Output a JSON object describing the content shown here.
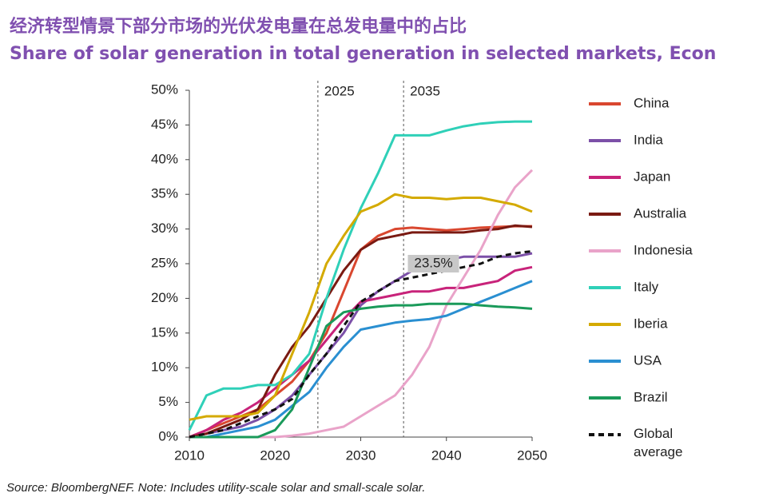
{
  "chart_data": {
    "type": "line",
    "title": "经济转型情景下部分市场的光伏发电量在总发电量中的占比",
    "subtitle": "Share of solar generation in total generation in selected markets, Econ",
    "source": "Source: BloombergNEF. Note: Includes utility-scale solar and small-scale solar.",
    "annotation": "23.5%",
    "vlines": [
      2025,
      2035
    ],
    "legend": "right",
    "x": [
      2010,
      2012,
      2014,
      2016,
      2018,
      2020,
      2022,
      2024,
      2026,
      2028,
      2030,
      2032,
      2034,
      2036,
      2038,
      2040,
      2042,
      2044,
      2046,
      2048,
      2050
    ],
    "xlim": [
      2010,
      2050
    ],
    "xticks": [
      2010,
      2020,
      2030,
      2040,
      2050
    ],
    "ylim": [
      0,
      50
    ],
    "yticks": [
      {
        "value": 0,
        "label": "0%"
      },
      {
        "value": 5,
        "label": "5%"
      },
      {
        "value": 10,
        "label": "10%"
      },
      {
        "value": 15,
        "label": "15%"
      },
      {
        "value": 20,
        "label": "20%"
      },
      {
        "value": 25,
        "label": "25%"
      },
      {
        "value": 30,
        "label": "30%"
      },
      {
        "value": 35,
        "label": "35%"
      },
      {
        "value": 40,
        "label": "40%"
      },
      {
        "value": 45,
        "label": "45%"
      },
      {
        "value": 50,
        "label": "50%"
      }
    ],
    "series": [
      {
        "name": "China",
        "color": "#d9472f",
        "values": [
          0,
          1,
          2,
          3,
          4,
          6,
          8,
          11,
          15,
          21,
          27,
          29,
          30,
          30.2,
          30,
          29.8,
          30,
          30.2,
          30.3,
          30.4,
          30.4
        ]
      },
      {
        "name": "India",
        "color": "#7c50a8",
        "values": [
          0,
          0.5,
          1,
          1.5,
          2.5,
          4,
          6,
          9,
          12,
          15,
          19,
          21,
          22.5,
          24,
          25,
          25.5,
          26,
          26,
          26,
          26,
          26.5
        ]
      },
      {
        "name": "Japan",
        "color": "#c8237a",
        "values": [
          0,
          1,
          2.5,
          3.5,
          5,
          7,
          9,
          11,
          14,
          17,
          19.5,
          20,
          20.5,
          21,
          21,
          21.5,
          21.5,
          22,
          22.5,
          24,
          24.5
        ]
      },
      {
        "name": "Australia",
        "color": "#7a1a12",
        "values": [
          0,
          0.5,
          1.5,
          2.5,
          4,
          9,
          13,
          16,
          20,
          24,
          27,
          28.5,
          29,
          29.5,
          29.5,
          29.5,
          29.5,
          29.8,
          30,
          30.5,
          30.3
        ]
      },
      {
        "name": "Indonesia",
        "color": "#e9a3c9",
        "values": [
          null,
          null,
          null,
          null,
          0,
          0,
          0.2,
          0.5,
          1,
          1.5,
          3,
          4.5,
          6,
          9,
          13,
          19,
          23,
          27,
          32,
          36,
          38.5
        ]
      },
      {
        "name": "Italy",
        "color": "#2fd0b8",
        "values": [
          1,
          6,
          7,
          7,
          7.5,
          7.5,
          9,
          12,
          20,
          27,
          33,
          38,
          43.5,
          43.5,
          43.5,
          44.2,
          44.8,
          45.2,
          45.4,
          45.5,
          45.5
        ]
      },
      {
        "name": "Iberia",
        "color": "#d4aa00",
        "values": [
          2.5,
          3,
          3,
          3,
          3.5,
          6,
          12,
          18,
          25,
          29,
          32.5,
          33.5,
          35,
          34.5,
          34.5,
          34.3,
          34.5,
          34.5,
          34,
          33.5,
          32.5
        ]
      },
      {
        "name": "USA",
        "color": "#2a8fd1",
        "values": [
          0,
          0,
          0.5,
          1,
          1.5,
          2.5,
          4.5,
          6.5,
          10,
          13,
          15.5,
          16,
          16.5,
          16.8,
          17,
          17.5,
          18.5,
          19.5,
          20.5,
          21.5,
          22.5
        ]
      },
      {
        "name": "Brazil",
        "color": "#1a9a5a",
        "values": [
          0,
          0,
          0,
          0,
          0,
          1,
          4,
          10,
          16,
          18,
          18.5,
          18.8,
          19,
          19,
          19.2,
          19.2,
          19.2,
          19,
          18.8,
          18.7,
          18.5
        ]
      },
      {
        "name": "Global average",
        "color": "#111111",
        "dash": true,
        "values": [
          0,
          0.5,
          1,
          2,
          3,
          4,
          5.5,
          9,
          12,
          16,
          19.5,
          21,
          22.5,
          23,
          23.5,
          24,
          24.5,
          25,
          26,
          26.5,
          26.8
        ]
      }
    ]
  }
}
